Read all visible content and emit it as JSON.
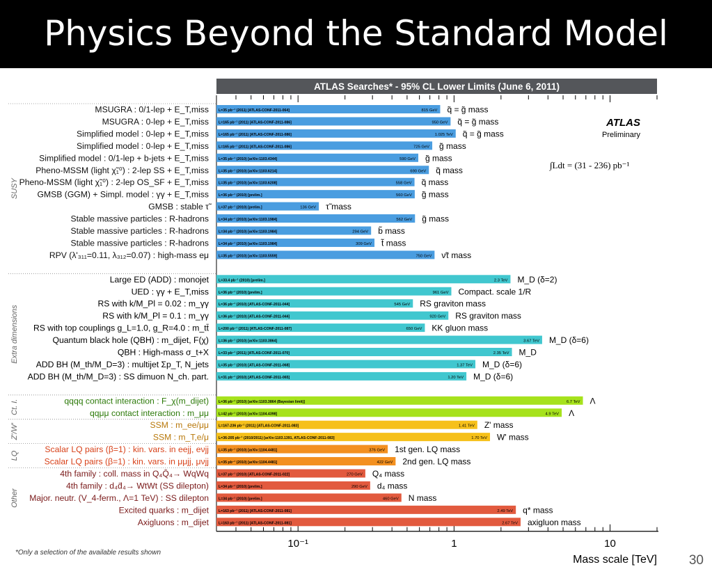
{
  "slide": {
    "title": "Physics Beyond the Standard Model",
    "footnote": "*Only a selection of the available results shown",
    "page_number": "30"
  },
  "chart_data": {
    "type": "bar",
    "orientation": "horizontal",
    "title": "ATLAS Searches* - 95% CL Lower Limits (June 6, 2011)",
    "xlabel": "Mass scale [TeV]",
    "x_scale": "log",
    "xlim": [
      0.03,
      20
    ],
    "x_ticks": [
      {
        "value": 0.1,
        "label": "10⁻¹"
      },
      {
        "value": 1,
        "label": "1"
      },
      {
        "value": 10,
        "label": "10"
      }
    ],
    "logo": "ATLAS",
    "logo_sub": "Preliminary",
    "luminosity": "∫Ldt = (31 - 236) pb⁻¹",
    "colors": {
      "SUSY": "#4a9de0",
      "Extra dimensions": "#41c7cf",
      "Ct. I.": "#a6e21c",
      "Z'/W'": "#f6c01a",
      "LQ": "#f39020",
      "Other": "#e25a3e"
    },
    "groups": [
      {
        "name": "SUSY",
        "start": 0,
        "end": 13
      },
      {
        "name": "Extra dimensions",
        "start": 14,
        "end": 23
      },
      {
        "name": "Ct. I.",
        "start": 24,
        "end": 25
      },
      {
        "name": "Z'/W'",
        "start": 26,
        "end": 27
      },
      {
        "name": "LQ",
        "start": 28,
        "end": 29
      },
      {
        "name": "Other",
        "start": 30,
        "end": 34
      }
    ],
    "rows": [
      {
        "label": "MSUGRA : 0/1-lep + E_T,miss",
        "group": "SUSY",
        "value": 0.815,
        "value_label": "815 GeV",
        "info": "L=35 pb⁻¹ (2011) [ATLAS-CONF-2011-064]",
        "result": "q̃ = g̃ mass"
      },
      {
        "label": "MSUGRA : 0-lep + E_T,miss",
        "group": "SUSY",
        "value": 0.95,
        "value_label": "950 GeV",
        "info": "L=165 pb⁻¹ (2011) [ATLAS-CONF-2011-086]",
        "result": "q̃ = g̃ mass"
      },
      {
        "label": "Simplified model : 0-lep + E_T,miss",
        "group": "SUSY",
        "value": 1.025,
        "value_label": "1.025 TeV",
        "info": "L=165 pb⁻¹ (2011) [ATLAS-CONF-2011-086]",
        "result": "q̃ = g̃ mass"
      },
      {
        "label": "Simplified model : 0-lep + E_T,miss",
        "group": "SUSY",
        "value": 0.725,
        "value_label": "725 GeV",
        "info": "L=165 pb⁻¹ (2011) [ATLAS-CONF-2011-086]",
        "result": "g̃ mass"
      },
      {
        "label": "Simplified model : 0/1-lep + b-jets + E_T,miss",
        "group": "SUSY",
        "value": 0.59,
        "value_label": "590 GeV",
        "info": "L=35 pb⁻¹ (2010) [arXiv:1103.4344]",
        "result": "g̃ mass"
      },
      {
        "label": "Pheno-MSSM (light χ̃₁⁰) : 2-lep SS + E_T,miss",
        "group": "SUSY",
        "value": 0.69,
        "value_label": "690 GeV",
        "info": "L=35 pb⁻¹ (2010) [arXiv:1103.6214]",
        "result": "q̃ mass"
      },
      {
        "label": "Pheno-MSSM (light χ̃₁⁰) : 2-lep OS_SF + E_T,miss",
        "group": "SUSY",
        "value": 0.558,
        "value_label": "558 GeV",
        "info": "L=35 pb⁻¹ (2010) [arXiv:1103.6208]",
        "result": "q̃ mass"
      },
      {
        "label": "GMSB (GGM) + Simpl. model : γγ + E_T,miss",
        "group": "SUSY",
        "value": 0.56,
        "value_label": "560 GeV",
        "info": "L=36 pb⁻¹ (2010) [prelim.]",
        "result": "g̃ mass"
      },
      {
        "label": "GMSB : stable τ̃",
        "group": "SUSY",
        "value": 0.136,
        "value_label": "136 GeV",
        "info": "L=37 pb⁻¹ (2010) [prelim.]",
        "result": "τ̃ mass"
      },
      {
        "label": "Stable massive particles : R-hadrons",
        "group": "SUSY",
        "value": 0.562,
        "value_label": "562 GeV",
        "info": "L=34 pb⁻¹ (2010) [arXiv:1103.1984]",
        "result": "g̃ mass"
      },
      {
        "label": "Stable massive particles : R-hadrons",
        "group": "SUSY",
        "value": 0.294,
        "value_label": "294 GeV",
        "info": "L=34 pb⁻¹ (2010) [arXiv:1103.1984]",
        "result": "b̃ mass"
      },
      {
        "label": "Stable massive particles : R-hadrons",
        "group": "SUSY",
        "value": 0.309,
        "value_label": "309 GeV",
        "info": "L=34 pb⁻¹ (2010) [arXiv:1103.1984]",
        "result": "t̃ mass"
      },
      {
        "label": "RPV (λ'₃₁₁=0.11, λ₃₁₂=0.07) : high-mass eμ",
        "group": "SUSY",
        "value": 0.75,
        "value_label": "750 GeV",
        "info": "L=35 pb⁻¹ (2010) [arXiv:1103.5559]",
        "result": "ν̃τ mass"
      },
      {
        "label": "",
        "group": "SUSY",
        "value": null,
        "value_label": "",
        "info": "",
        "result": ""
      },
      {
        "label": "Large ED (ADD) : monojet",
        "group": "Extra dimensions",
        "value": 2.3,
        "value_label": "2.3 TeV",
        "info": "L=33.4 pb⁻¹ (2010) [prelim.]",
        "result": "M_D (δ=2)"
      },
      {
        "label": "UED : γγ + E_T,miss",
        "group": "Extra dimensions",
        "value": 0.961,
        "value_label": "961 GeV",
        "info": "L=36 pb⁻¹ (2010) [prelim.]",
        "result": "Compact. scale 1/R"
      },
      {
        "label": "RS with k/M_Pl = 0.02 : m_γγ",
        "group": "Extra dimensions",
        "value": 0.545,
        "value_label": "545 GeV",
        "info": "L=36 pb⁻¹ (2010) [ATLAS-CONF-2011-044]",
        "result": "RS graviton mass"
      },
      {
        "label": "RS with k/M_Pl = 0.1 : m_γγ",
        "group": "Extra dimensions",
        "value": 0.92,
        "value_label": "920 GeV",
        "info": "L=36 pb⁻¹ (2010) [ATLAS-CONF-2011-044]",
        "result": "RS graviton mass"
      },
      {
        "label": "RS with top couplings g_L=1.0, g_R=4.0 : m_tt̄",
        "group": "Extra dimensions",
        "value": 0.65,
        "value_label": "650 GeV",
        "info": "L=200 pb⁻¹ (2011) [ATLAS-CONF-2011-087]",
        "result": "KK gluon mass"
      },
      {
        "label": "Quantum black hole (QBH) : m_dijet, F(χ)",
        "group": "Extra dimensions",
        "value": 3.67,
        "value_label": "3.67 TeV",
        "info": "L=36 pb⁻¹ (2010) [arXiv:1103.3864]",
        "result": "M_D (δ=6)"
      },
      {
        "label": "QBH : High-mass σ_t+X",
        "group": "Extra dimensions",
        "value": 2.35,
        "value_label": "2.35 TeV",
        "info": "L=33 pb⁻¹ (2011) [ATLAS-CONF-2011-070]",
        "result": "M_D"
      },
      {
        "label": "ADD BH (M_th/M_D=3) : multijet Σp_T, N_jets",
        "group": "Extra dimensions",
        "value": 1.37,
        "value_label": "1.37 TeV",
        "info": "L=35 pb⁻¹ (2010) [ATLAS-CONF-2011-068]",
        "result": "M_D (δ=6)"
      },
      {
        "label": "ADD BH (M_th/M_D=3) : SS dimuon N_ch. part.",
        "group": "Extra dimensions",
        "value": 1.2,
        "value_label": "1.20 TeV",
        "info": "L=31 pb⁻¹ (2010) [ATLAS-CONF-2011-065]",
        "result": "M_D (δ=6)"
      },
      {
        "label": "",
        "group": "Extra dimensions",
        "value": null,
        "value_label": "",
        "info": "",
        "result": ""
      },
      {
        "label": "qqqq contact interaction : F_χ(m_dijet)",
        "group": "Ct. I.",
        "value": 6.7,
        "value_label": "6.7 TeV",
        "info": "L=36 pb⁻¹ (2010) [arXiv:1103.3864 (Bayesian limit)]",
        "result": "Λ"
      },
      {
        "label": "qqμμ contact interaction : m_μμ",
        "group": "Ct. I.",
        "value": 4.9,
        "value_label": "4.9 TeV",
        "info": "L=42 pb⁻¹ (2010) [arXiv:1104.4398]",
        "result": "Λ"
      },
      {
        "label": "SSM : m_ee/μμ",
        "group": "Z'/W'",
        "value": 1.41,
        "value_label": "1.41 TeV",
        "info": "L=167-236 pb⁻¹ (2011) [ATLAS-CONF-2011-083]",
        "result": "Z' mass"
      },
      {
        "label": "SSM : m_T,e/μ",
        "group": "Z'/W'",
        "value": 1.7,
        "value_label": "1.70 TeV",
        "info": "L=36-205 pb⁻¹ (2010/2011) [arXiv:1103.1391, ATLAS-CONF-2011-083]",
        "result": "W' mass"
      },
      {
        "label": "Scalar LQ pairs (β=1) : kin. vars. in eejj, eνjj",
        "group": "LQ",
        "value": 0.376,
        "value_label": "376 GeV",
        "info": "L=35 pb⁻¹ (2010) [arXiv:1104.4481]",
        "result": "1st gen. LQ mass"
      },
      {
        "label": "Scalar LQ pairs (β=1) : kin. vars. in μμjj, μνjj",
        "group": "LQ",
        "value": 0.422,
        "value_label": "422 GeV",
        "info": "L=35 pb⁻¹ (2010) [arXiv:1104.4481]",
        "result": "2nd gen. LQ mass"
      },
      {
        "label": "4th family : coll. mass in Q₄Q̄₄→ WqWq",
        "group": "Other",
        "value": 0.27,
        "value_label": "270 GeV",
        "info": "L=37 pb⁻¹ (2010) [ATLAS-CONF-2011-022]",
        "result": "Q₄ mass"
      },
      {
        "label": "4th family : d₄d̄₄→ WtWt (SS dilepton)",
        "group": "Other",
        "value": 0.29,
        "value_label": "290 GeV",
        "info": "L=34 pb⁻¹ (2010) [prelim.]",
        "result": "d₄ mass"
      },
      {
        "label": "Major. neutr. (V_4-ferm., Λ=1 TeV) : SS dilepton",
        "group": "Other",
        "value": 0.46,
        "value_label": "460 GeV",
        "info": "L=34 pb⁻¹ (2010) [prelim.]",
        "result": "N mass"
      },
      {
        "label": "Excited quarks : m_dijet",
        "group": "Other",
        "value": 2.49,
        "value_label": "2.49 TeV",
        "info": "L=163 pb⁻¹ (2011) [ATLAS-CONF-2011-081]",
        "result": "q* mass"
      },
      {
        "label": "Axigluons : m_dijet",
        "group": "Other",
        "value": 2.67,
        "value_label": "2.67 TeV",
        "info": "L=163 pb⁻¹ (2011) [ATLAS-CONF-2011-081]",
        "result": "axigluon mass"
      }
    ]
  }
}
